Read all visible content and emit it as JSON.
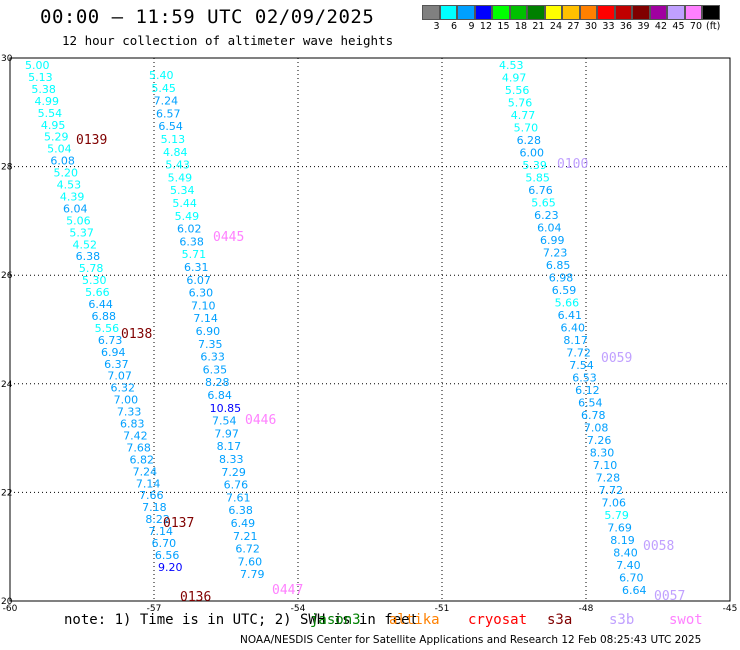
{
  "title": "00:00 — 11:59 UTC 02/09/2025",
  "subtitle": "12 hour collection of altimeter wave heights",
  "colorbar": {
    "colors": [
      "#808080",
      "#00ffff",
      "#00a0ff",
      "#0000ff",
      "#00ff00",
      "#00c000",
      "#008000",
      "#ffff00",
      "#ffc000",
      "#ff8000",
      "#ff0000",
      "#c00000",
      "#800000",
      "#a000a0",
      "#c0a0ff",
      "#ff80ff",
      "#000000"
    ],
    "labels": [
      "3",
      "6",
      "9",
      "12",
      "15",
      "18",
      "21",
      "24",
      "27",
      "30",
      "33",
      "36",
      "39",
      "42",
      "45",
      "70"
    ],
    "unit": "(ft)"
  },
  "axes": {
    "x_ticks": [
      "-60",
      "-57",
      "-54",
      "-51",
      "-48",
      "-45"
    ],
    "y_ticks": [
      "30",
      "28",
      "26",
      "24",
      "22",
      "20"
    ]
  },
  "tracks": [
    {
      "values": [
        "5.00",
        "5.13",
        "5.38",
        "4.99",
        "5.54",
        "4.95",
        "5.29",
        "5.04",
        "6.08",
        "5.20",
        "4.53",
        "4.39",
        "6.04",
        "5.06",
        "5.37",
        "4.52",
        "6.38",
        "5.78",
        "5.30",
        "5.66",
        "6.44",
        "6.88",
        "5.56",
        "6.73",
        "6.94",
        "6.37",
        "7.07",
        "6.32",
        "7.00",
        "7.33",
        "6.83",
        "7.42",
        "7.68",
        "6.82",
        "7.24",
        "7.14",
        "7.66",
        "7.18",
        "8.22",
        "7.14",
        "6.70",
        "6.56",
        "9.20"
      ]
    },
    {
      "values": [
        "5.40",
        "5.45",
        "7.24",
        "6.57",
        "6.54",
        "5.13",
        "4.84",
        "5.43",
        "5.49",
        "5.34",
        "5.44",
        "5.49",
        "6.02",
        "6.38",
        "5.71",
        "6.31",
        "6.07",
        "6.30",
        "7.10",
        "7.14",
        "6.90",
        "7.35",
        "6.33",
        "6.35",
        "8.28",
        "6.84",
        "10.85",
        "7.54",
        "7.97",
        "8.17",
        "8.33",
        "7.29",
        "6.76",
        "7.61",
        "6.38",
        "6.49",
        "7.21",
        "6.72",
        "7.60",
        "7.79"
      ]
    },
    {
      "values": [
        "4.53",
        "4.97",
        "5.56",
        "5.76",
        "4.77",
        "5.70",
        "6.28",
        "6.00",
        "5.39",
        "5.85",
        "6.76",
        "5.65",
        "6.23",
        "6.04",
        "6.99",
        "7.23",
        "6.85",
        "6.98",
        "6.59",
        "5.66",
        "6.41",
        "6.40",
        "8.17",
        "7.72",
        "7.54",
        "6.53",
        "6.12",
        "6.54",
        "6.78",
        "7.08",
        "7.26",
        "8.30",
        "7.10",
        "7.28",
        "7.72",
        "7.06",
        "5.79",
        "7.69",
        "8.19",
        "8.40",
        "7.40",
        "6.70",
        "6.64"
      ]
    }
  ],
  "pass_labels": [
    {
      "text": "0139",
      "color": "#800000"
    },
    {
      "text": "0138",
      "color": "#800000"
    },
    {
      "text": "0137",
      "color": "#800000"
    },
    {
      "text": "0136",
      "color": "#800000"
    },
    {
      "text": "0445",
      "color": "#ff80ff"
    },
    {
      "text": "0446",
      "color": "#ff80ff"
    },
    {
      "text": "0447",
      "color": "#ff80ff"
    },
    {
      "text": "0100",
      "color": "#c0a0ff"
    },
    {
      "text": "0059",
      "color": "#c0a0ff"
    },
    {
      "text": "0058",
      "color": "#c0a0ff"
    },
    {
      "text": "0057",
      "color": "#c0a0ff"
    }
  ],
  "note": "note: 1) Time is in UTC; 2) SWH is in feet",
  "legend": [
    {
      "name": "jason3",
      "color": "#008000"
    },
    {
      "name": "altika",
      "color": "#ff8000"
    },
    {
      "name": "cryosat",
      "color": "#ff0000"
    },
    {
      "name": "s3a",
      "color": "#800000"
    },
    {
      "name": "s3b",
      "color": "#c0a0ff"
    },
    {
      "name": "swot",
      "color": "#ff80ff"
    }
  ],
  "credit": "NOAA/NESDIS Center for Satellite Applications and Research    12 Feb 08:25:43 UTC 2025"
}
